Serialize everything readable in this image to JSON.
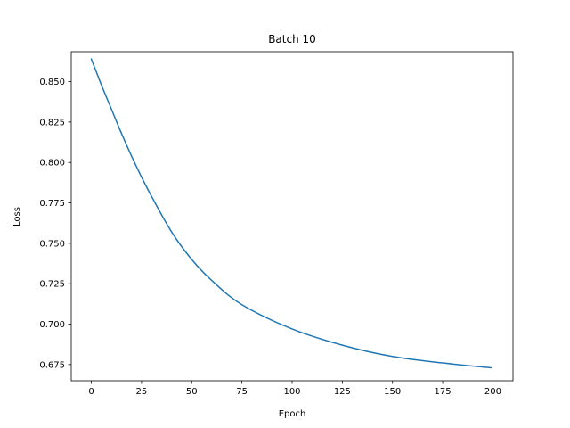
{
  "chart_data": {
    "type": "line",
    "title": "Batch 10",
    "xlabel": "Epoch",
    "ylabel": "Loss",
    "xlim": [
      -10,
      210
    ],
    "ylim": [
      0.665,
      0.8685
    ],
    "xticks": [
      0,
      25,
      50,
      75,
      100,
      125,
      150,
      175,
      200
    ],
    "yticks": [
      0.675,
      0.7,
      0.725,
      0.75,
      0.775,
      0.8,
      0.825,
      0.85
    ],
    "ytick_labels": [
      "0.675",
      "0.700",
      "0.725",
      "0.750",
      "0.775",
      "0.800",
      "0.825",
      "0.850"
    ],
    "grid": false,
    "line_color": "#1f77b4",
    "series": [
      {
        "x": [
          0,
          5,
          10,
          15,
          20,
          25,
          30,
          40,
          50,
          60,
          75,
          100,
          125,
          150,
          175,
          199
        ],
        "values": [
          0.864,
          0.848,
          0.833,
          0.818,
          0.804,
          0.791,
          0.779,
          0.757,
          0.74,
          0.727,
          0.712,
          0.697,
          0.687,
          0.68,
          0.676,
          0.673
        ]
      }
    ]
  }
}
